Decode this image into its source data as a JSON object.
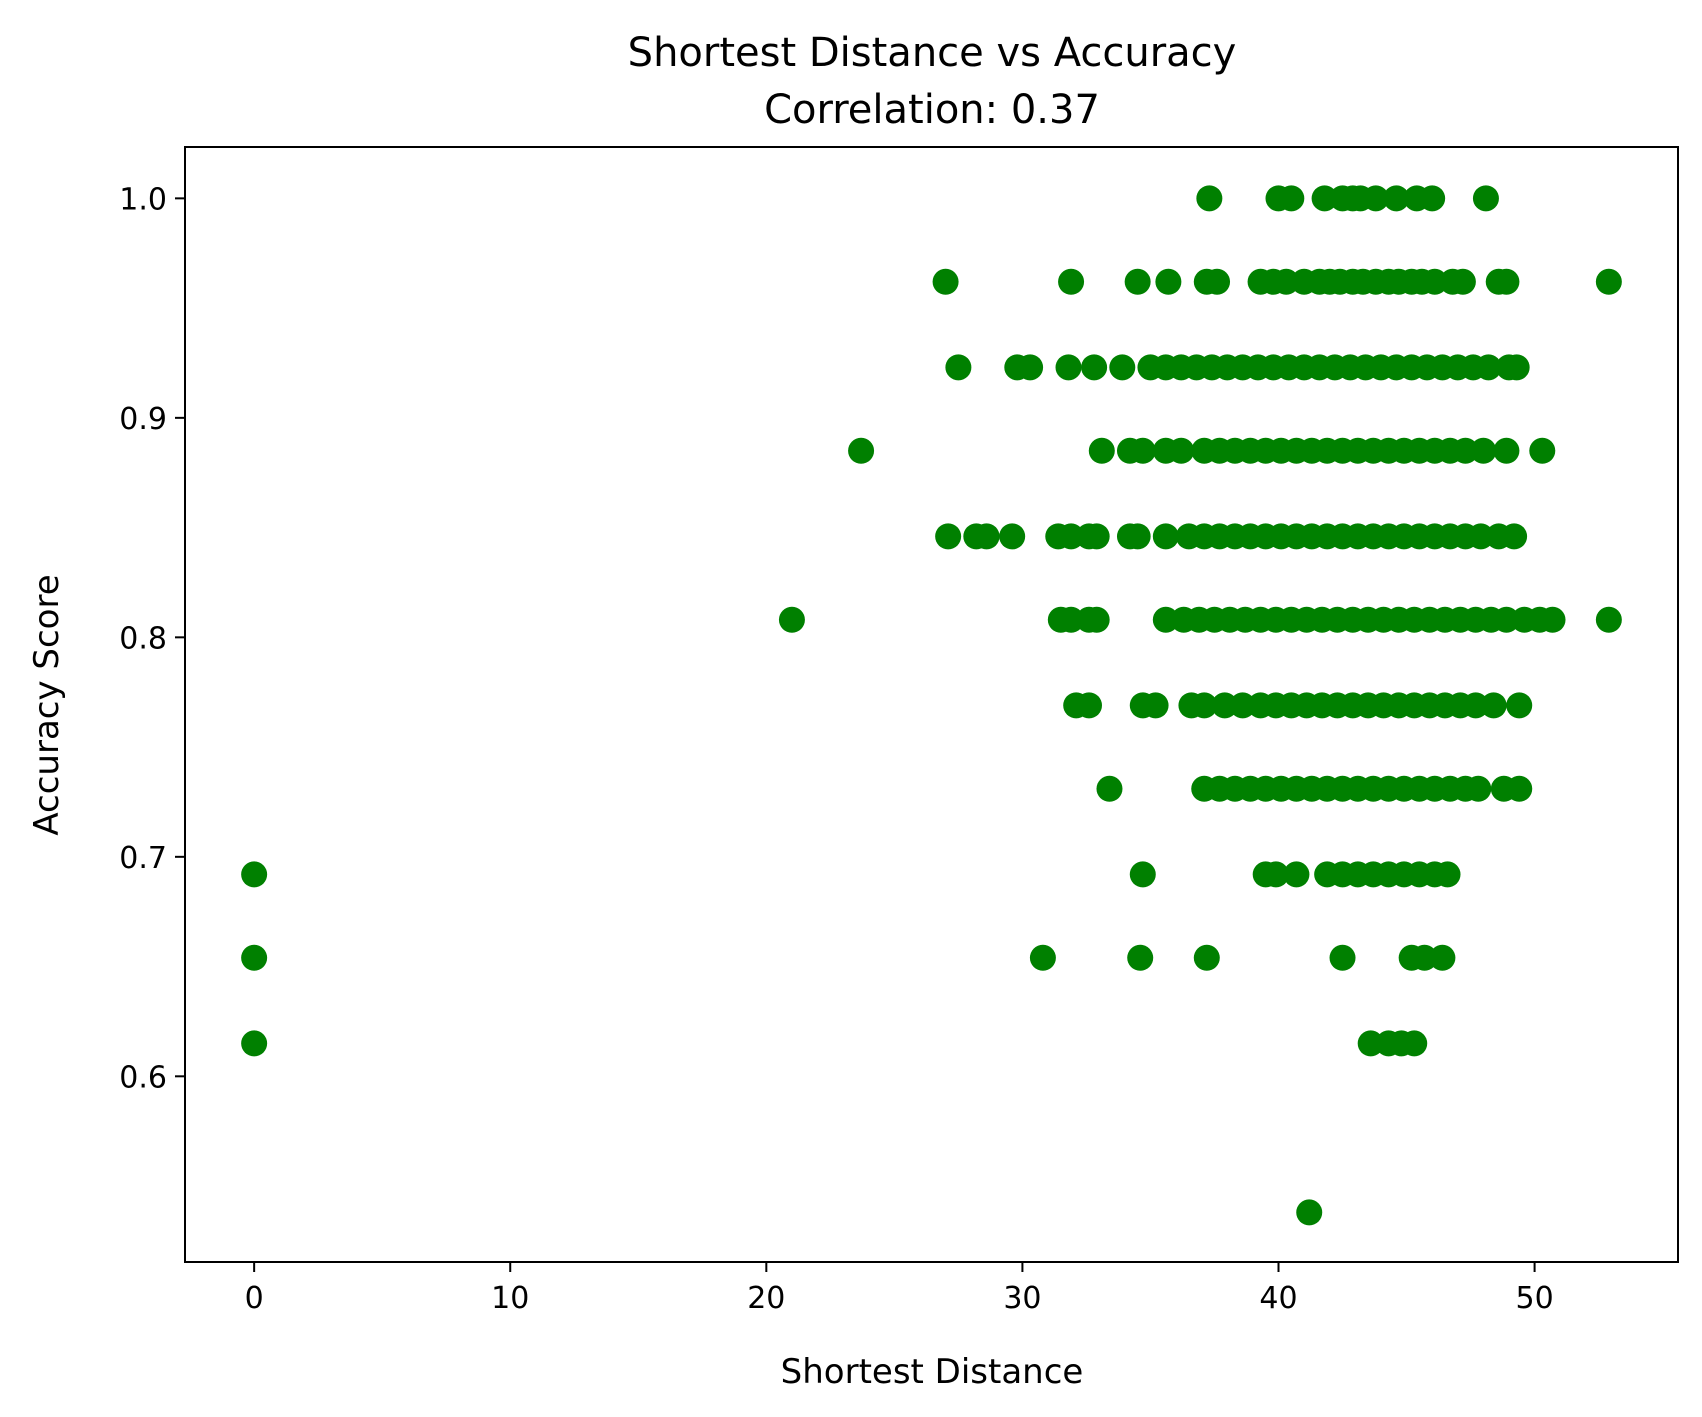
{
  "chart_data": {
    "type": "scatter",
    "title": "Shortest Distance vs Accuracy",
    "subtitle": "Correlation: 0.37",
    "xlabel": "Shortest Distance",
    "ylabel": "Accuracy Score",
    "xlim": [
      -2.7,
      55.6
    ],
    "ylim": [
      0.5154,
      1.0234
    ],
    "xticks": [
      0,
      10,
      20,
      30,
      40,
      50
    ],
    "yticks": [
      0.6,
      0.7,
      0.8,
      0.9,
      1.0
    ],
    "xtick_labels": [
      "0",
      "10",
      "20",
      "30",
      "40",
      "50"
    ],
    "ytick_labels": [
      "0.6",
      "0.7",
      "0.8",
      "0.9",
      "1.0"
    ],
    "grid": false,
    "color": "#008000",
    "series": [
      {
        "rows": [
          {
            "y": 1.0,
            "x": [
              37.3,
              40.0,
              40.5,
              41.8,
              42.5,
              42.9,
              43.2,
              43.8,
              44.6,
              45.4,
              46.0,
              48.1
            ]
          },
          {
            "y": 0.962,
            "x": [
              27.0,
              31.9,
              34.5,
              35.7,
              37.2,
              37.6,
              39.3,
              39.8,
              40.3,
              41.0,
              41.6,
              42.0,
              42.4,
              42.9,
              43.3,
              43.8,
              44.3,
              44.7,
              45.2,
              45.6,
              46.1,
              46.8,
              47.2,
              48.6,
              48.9,
              52.9
            ]
          },
          {
            "y": 0.923,
            "x": [
              27.5,
              29.8,
              30.3,
              31.8,
              32.8,
              33.9,
              35.0,
              35.6,
              36.2,
              36.8,
              37.4,
              38.0,
              38.6,
              39.2,
              39.8,
              40.4,
              41.0,
              41.6,
              42.2,
              42.8,
              43.4,
              44.0,
              44.6,
              45.2,
              45.8,
              46.4,
              47.0,
              47.6,
              48.2,
              49.0,
              49.3
            ]
          },
          {
            "y": 0.885,
            "x": [
              23.7,
              33.1,
              34.2,
              34.7,
              35.6,
              36.2,
              37.1,
              37.7,
              38.3,
              38.9,
              39.5,
              40.1,
              40.7,
              41.3,
              41.9,
              42.5,
              43.1,
              43.7,
              44.3,
              44.9,
              45.5,
              46.1,
              46.7,
              47.3,
              48.0,
              48.9,
              50.3
            ]
          },
          {
            "y": 0.846,
            "x": [
              27.1,
              28.2,
              28.6,
              29.6,
              31.4,
              31.9,
              32.6,
              32.9,
              34.2,
              34.5,
              35.6,
              36.5,
              37.1,
              37.7,
              38.3,
              38.9,
              39.5,
              40.1,
              40.7,
              41.3,
              41.9,
              42.5,
              43.1,
              43.7,
              44.3,
              44.9,
              45.5,
              46.1,
              46.7,
              47.3,
              47.9,
              48.6,
              49.2
            ]
          },
          {
            "y": 0.808,
            "x": [
              21.0,
              31.5,
              31.9,
              32.6,
              32.9,
              35.6,
              36.3,
              36.9,
              37.5,
              38.1,
              38.7,
              39.3,
              39.9,
              40.5,
              41.1,
              41.7,
              42.3,
              42.9,
              43.5,
              44.1,
              44.7,
              45.3,
              45.9,
              46.5,
              47.1,
              47.7,
              48.3,
              48.9,
              49.6,
              50.2,
              50.7,
              52.9
            ]
          },
          {
            "y": 0.769,
            "x": [
              32.1,
              32.6,
              34.7,
              35.2,
              36.6,
              37.1,
              37.9,
              38.6,
              39.3,
              39.9,
              40.5,
              41.1,
              41.7,
              42.3,
              42.9,
              43.5,
              44.1,
              44.7,
              45.3,
              45.9,
              46.5,
              47.1,
              47.7,
              48.4,
              49.4
            ]
          },
          {
            "y": 0.731,
            "x": [
              33.4,
              37.1,
              37.7,
              38.3,
              38.9,
              39.5,
              40.1,
              40.7,
              41.3,
              41.9,
              42.5,
              43.1,
              43.7,
              44.3,
              44.9,
              45.5,
              46.1,
              46.7,
              47.3,
              47.8,
              48.8,
              49.4
            ]
          },
          {
            "y": 0.692,
            "x": [
              0.0,
              34.7,
              39.5,
              39.9,
              40.7,
              41.9,
              42.5,
              43.1,
              43.7,
              44.3,
              44.9,
              45.5,
              46.1,
              46.6
            ]
          },
          {
            "y": 0.654,
            "x": [
              0.0,
              30.8,
              34.6,
              37.2,
              42.5,
              45.2,
              45.7,
              46.4
            ]
          },
          {
            "y": 0.615,
            "x": [
              0.0,
              43.6,
              44.3,
              44.8,
              45.3
            ]
          },
          {
            "y": 0.538,
            "x": [
              41.2
            ]
          }
        ]
      }
    ]
  }
}
